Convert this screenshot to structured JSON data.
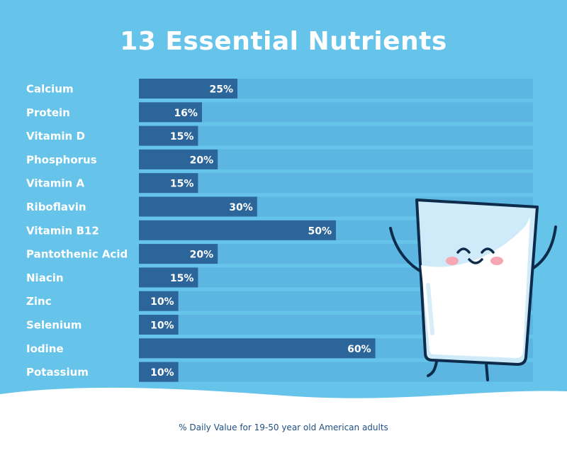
{
  "chart_data": {
    "type": "bar",
    "orientation": "horizontal",
    "title": "13 Essential Nutrients",
    "categories": [
      "Calcium",
      "Protein",
      "Vitamin D",
      "Phosphorus",
      "Vitamin A",
      "Riboflavin",
      "Vitamin B12",
      "Pantothenic Acid",
      "Niacin",
      "Zinc",
      "Selenium",
      "Iodine",
      "Potassium"
    ],
    "values": [
      25,
      16,
      15,
      20,
      15,
      30,
      50,
      20,
      15,
      10,
      10,
      60,
      10
    ],
    "value_suffix": "%",
    "xlim": [
      0,
      100
    ],
    "grid": false,
    "legend": "none",
    "footnote": "% Daily Value for 19-50 year old American adults"
  },
  "colors": {
    "background": "#66c3ea",
    "track": "#5cb6e1",
    "bar": "#2b6599",
    "text": "#ffffff",
    "bottom_wave": "#ffffff",
    "footnote_text": "#1f4f82"
  },
  "illustration": {
    "name": "smiling-milk-glass"
  }
}
